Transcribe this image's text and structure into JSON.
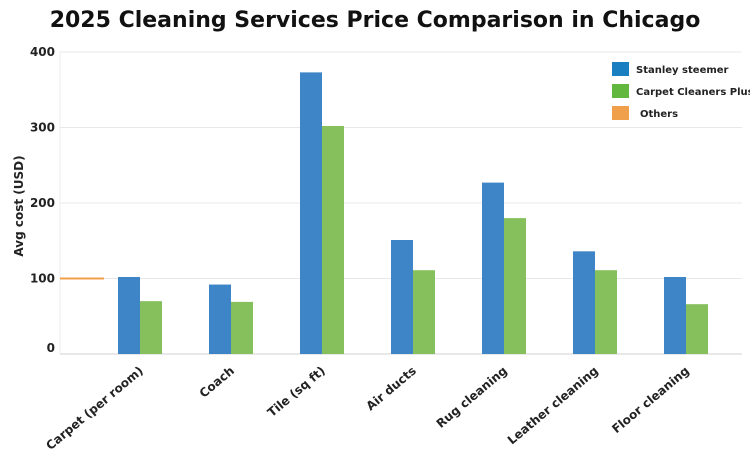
{
  "chart_data": {
    "type": "bar",
    "title": "2025 Cleaning Services Price Comparison in Chicago",
    "xlabel": "",
    "ylabel": "Avg cost (USD)",
    "ylim": [
      0,
      400
    ],
    "yticks": [
      0,
      100,
      200,
      300,
      400
    ],
    "grid": true,
    "legend_position": "top-right",
    "categories": [
      "Carpet (per room)",
      "Coach",
      "Tile (sq ft)",
      "Air ducts",
      "Rug cleaning",
      "Leather cleaning",
      "Floor cleaning"
    ],
    "series": [
      {
        "name": "Stanley steemer",
        "color": "#3d85c6",
        "legend_color": "#1a7fc1",
        "values": [
          102,
          92,
          373,
          151,
          227,
          136,
          102
        ]
      },
      {
        "name": "Carpet Cleaners Plus",
        "color": "#85c05c",
        "legend_color": "#62b83e",
        "values": [
          70,
          69,
          302,
          111,
          180,
          111,
          66
        ]
      },
      {
        "name": "Others",
        "color": "#f0a04a",
        "legend_color": "#f0a04a",
        "values": [
          100,
          null,
          null,
          null,
          null,
          null,
          null
        ]
      }
    ]
  }
}
